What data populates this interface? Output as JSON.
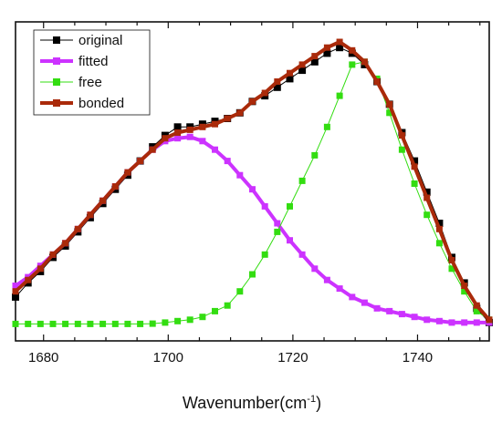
{
  "chart_data": {
    "type": "line",
    "title": "",
    "xlabel": "Wavenumber(cm",
    "xlabel_sup": "-1",
    "xlabel_close": ")",
    "ylabel": "",
    "xlim": [
      1675.5,
      1751.5
    ],
    "ylim": [
      0,
      1
    ],
    "xticks": [
      1680,
      1700,
      1720,
      1740
    ],
    "xtick_labels": [
      "1680",
      "1700",
      "1720",
      "1740"
    ],
    "y_tick_labels_shown": false,
    "grid": false,
    "legend_position": "top-left",
    "x": [
      1675.5,
      1677.5,
      1679.5,
      1681.5,
      1683.5,
      1685.5,
      1687.5,
      1689.5,
      1691.5,
      1693.5,
      1695.5,
      1697.5,
      1699.5,
      1701.5,
      1703.5,
      1705.5,
      1707.5,
      1709.5,
      1711.5,
      1713.5,
      1715.5,
      1717.5,
      1719.5,
      1721.5,
      1723.5,
      1725.5,
      1727.5,
      1729.5,
      1731.5,
      1733.5,
      1735.5,
      1737.5,
      1739.5,
      1741.5,
      1743.5,
      1745.5,
      1747.5,
      1749.5,
      1751.5
    ],
    "series": [
      {
        "name": "original",
        "color": "#000000",
        "marker": "square",
        "line_width": 1,
        "values": [
          0.1,
          0.15,
          0.19,
          0.24,
          0.28,
          0.33,
          0.38,
          0.43,
          0.48,
          0.53,
          0.58,
          0.63,
          0.67,
          0.7,
          0.7,
          0.71,
          0.72,
          0.73,
          0.75,
          0.79,
          0.81,
          0.84,
          0.87,
          0.9,
          0.93,
          0.96,
          0.98,
          0.96,
          0.92,
          0.86,
          0.78,
          0.68,
          0.58,
          0.47,
          0.36,
          0.24,
          0.15,
          0.06,
          0.01
        ]
      },
      {
        "name": "fitted",
        "color": "#cc33ff",
        "marker": "square",
        "line_width": 4,
        "values": [
          0.14,
          0.17,
          0.21,
          0.25,
          0.29,
          0.34,
          0.39,
          0.44,
          0.49,
          0.54,
          0.58,
          0.62,
          0.65,
          0.66,
          0.665,
          0.65,
          0.62,
          0.58,
          0.53,
          0.48,
          0.42,
          0.36,
          0.3,
          0.25,
          0.2,
          0.16,
          0.13,
          0.1,
          0.08,
          0.06,
          0.05,
          0.04,
          0.03,
          0.02,
          0.015,
          0.01,
          0.01,
          0.01,
          0.01
        ]
      },
      {
        "name": "free",
        "color": "#33dd11",
        "marker": "square",
        "line_width": 1,
        "values": [
          0.005,
          0.005,
          0.005,
          0.005,
          0.005,
          0.005,
          0.005,
          0.005,
          0.005,
          0.005,
          0.005,
          0.006,
          0.01,
          0.015,
          0.02,
          0.03,
          0.05,
          0.07,
          0.12,
          0.18,
          0.25,
          0.33,
          0.42,
          0.51,
          0.6,
          0.7,
          0.81,
          0.92,
          0.93,
          0.87,
          0.75,
          0.62,
          0.5,
          0.39,
          0.29,
          0.2,
          0.12,
          0.05,
          0.02
        ]
      },
      {
        "name": "bonded",
        "color": "#aa2a0a",
        "marker": "square",
        "line_width": 4,
        "values": [
          0.12,
          0.16,
          0.2,
          0.25,
          0.29,
          0.34,
          0.39,
          0.44,
          0.49,
          0.54,
          0.58,
          0.62,
          0.66,
          0.68,
          0.69,
          0.7,
          0.71,
          0.73,
          0.75,
          0.79,
          0.82,
          0.86,
          0.89,
          0.92,
          0.95,
          0.98,
          1.0,
          0.97,
          0.93,
          0.86,
          0.78,
          0.67,
          0.56,
          0.45,
          0.34,
          0.23,
          0.14,
          0.07,
          0.02
        ]
      }
    ]
  }
}
